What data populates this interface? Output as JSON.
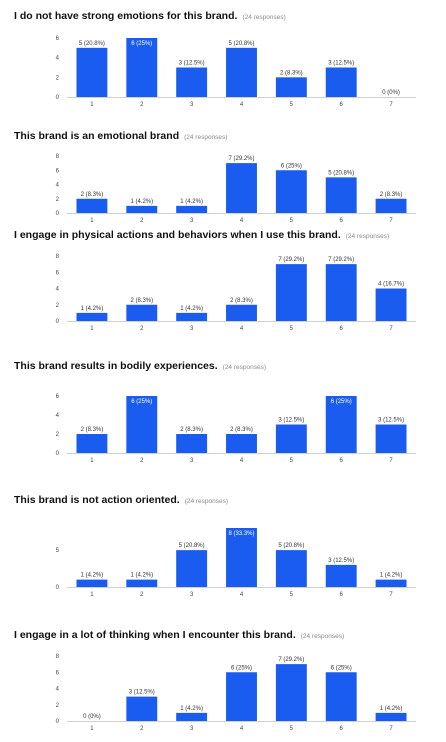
{
  "bar_color": "#1a5cf0",
  "axis_color": "#d0d0d0",
  "tick_color": "#444444",
  "label_color": "#333333",
  "responses_color": "#8a8a8a",
  "chart_data": [
    {
      "type": "bar",
      "title": "I do not have strong emotions for this brand.",
      "responses": "(24 responses)",
      "categories": [
        "1",
        "2",
        "3",
        "4",
        "5",
        "6",
        "7"
      ],
      "values": [
        5,
        6,
        3,
        5,
        2,
        3,
        0
      ],
      "data_labels": [
        "5 (20.8%)",
        "6 (25%)",
        "3 (12.5%)",
        "5 (20.8%)",
        "2 (8.3%)",
        "3 (12.5%)",
        "0 (0%)"
      ],
      "yticks": [
        "0",
        "2",
        "4",
        "6"
      ],
      "ylim": [
        0,
        6
      ]
    },
    {
      "type": "bar",
      "title": "This brand is an emotional brand",
      "responses": "(24 responses)",
      "categories": [
        "1",
        "2",
        "3",
        "4",
        "5",
        "6",
        "7"
      ],
      "values": [
        2,
        1,
        1,
        7,
        6,
        5,
        2
      ],
      "data_labels": [
        "2 (8.3%)",
        "1 (4.2%)",
        "1 (4.2%)",
        "7 (29.2%)",
        "6 (25%)",
        "5 (20.8%)",
        "2 (8.3%)"
      ],
      "yticks": [
        "0",
        "2",
        "4",
        "6",
        "8"
      ],
      "ylim": [
        0,
        8
      ]
    },
    {
      "type": "bar",
      "title": "I engage in physical actions and behaviors when I use this brand.",
      "responses": "(24 responses)",
      "categories": [
        "1",
        "2",
        "3",
        "4",
        "5",
        "6",
        "7"
      ],
      "values": [
        1,
        2,
        1,
        2,
        7,
        7,
        4
      ],
      "data_labels": [
        "1 (4.2%)",
        "2 (8.3%)",
        "1 (4.2%)",
        "2 (8.3%)",
        "7 (29.2%)",
        "7 (29.2%)",
        "4 (16.7%)"
      ],
      "yticks": [
        "0",
        "2",
        "4",
        "6",
        "8"
      ],
      "ylim": [
        0,
        8
      ]
    },
    {
      "type": "bar",
      "title": "This brand results in bodily experiences.",
      "responses": "(24 responses)",
      "categories": [
        "1",
        "2",
        "3",
        "4",
        "5",
        "6",
        "7"
      ],
      "values": [
        2,
        6,
        2,
        2,
        3,
        6,
        3
      ],
      "data_labels": [
        "2 (8.3%)",
        "6 (25%)",
        "2 (8.3%)",
        "2 (8.3%)",
        "3 (12.5%)",
        "6 (25%)",
        "3 (12.5%)"
      ],
      "yticks": [
        "0",
        "2",
        "4",
        "6"
      ],
      "ylim": [
        0,
        6
      ]
    },
    {
      "type": "bar",
      "title": "This brand is not action oriented.",
      "responses": "(24 responses)",
      "categories": [
        "1",
        "2",
        "3",
        "4",
        "5",
        "6",
        "7"
      ],
      "values": [
        1,
        1,
        5,
        8,
        5,
        3,
        1
      ],
      "data_labels": [
        "1 (4.2%)",
        "1 (4.2%)",
        "5 (20.8%)",
        "8 (33.3%)",
        "5 (20.8%)",
        "3 (12.5%)",
        "1 (4.2%)"
      ],
      "yticks": [
        "0",
        "5"
      ],
      "ytick_values": [
        0,
        5
      ],
      "ylim": [
        0,
        8
      ]
    },
    {
      "type": "bar",
      "title": "I engage in a lot of thinking when I encounter this brand.",
      "responses": "(24 responses)",
      "categories": [
        "1",
        "2",
        "3",
        "4",
        "5",
        "6",
        "7"
      ],
      "values": [
        0,
        3,
        1,
        6,
        7,
        6,
        1
      ],
      "data_labels": [
        "0 (0%)",
        "3 (12.5%)",
        "1 (4.2%)",
        "6 (25%)",
        "7 (29.2%)",
        "6 (25%)",
        "1 (4.2%)"
      ],
      "yticks": [
        "0",
        "2",
        "4",
        "6",
        "8"
      ],
      "ylim": [
        0,
        8
      ]
    }
  ]
}
